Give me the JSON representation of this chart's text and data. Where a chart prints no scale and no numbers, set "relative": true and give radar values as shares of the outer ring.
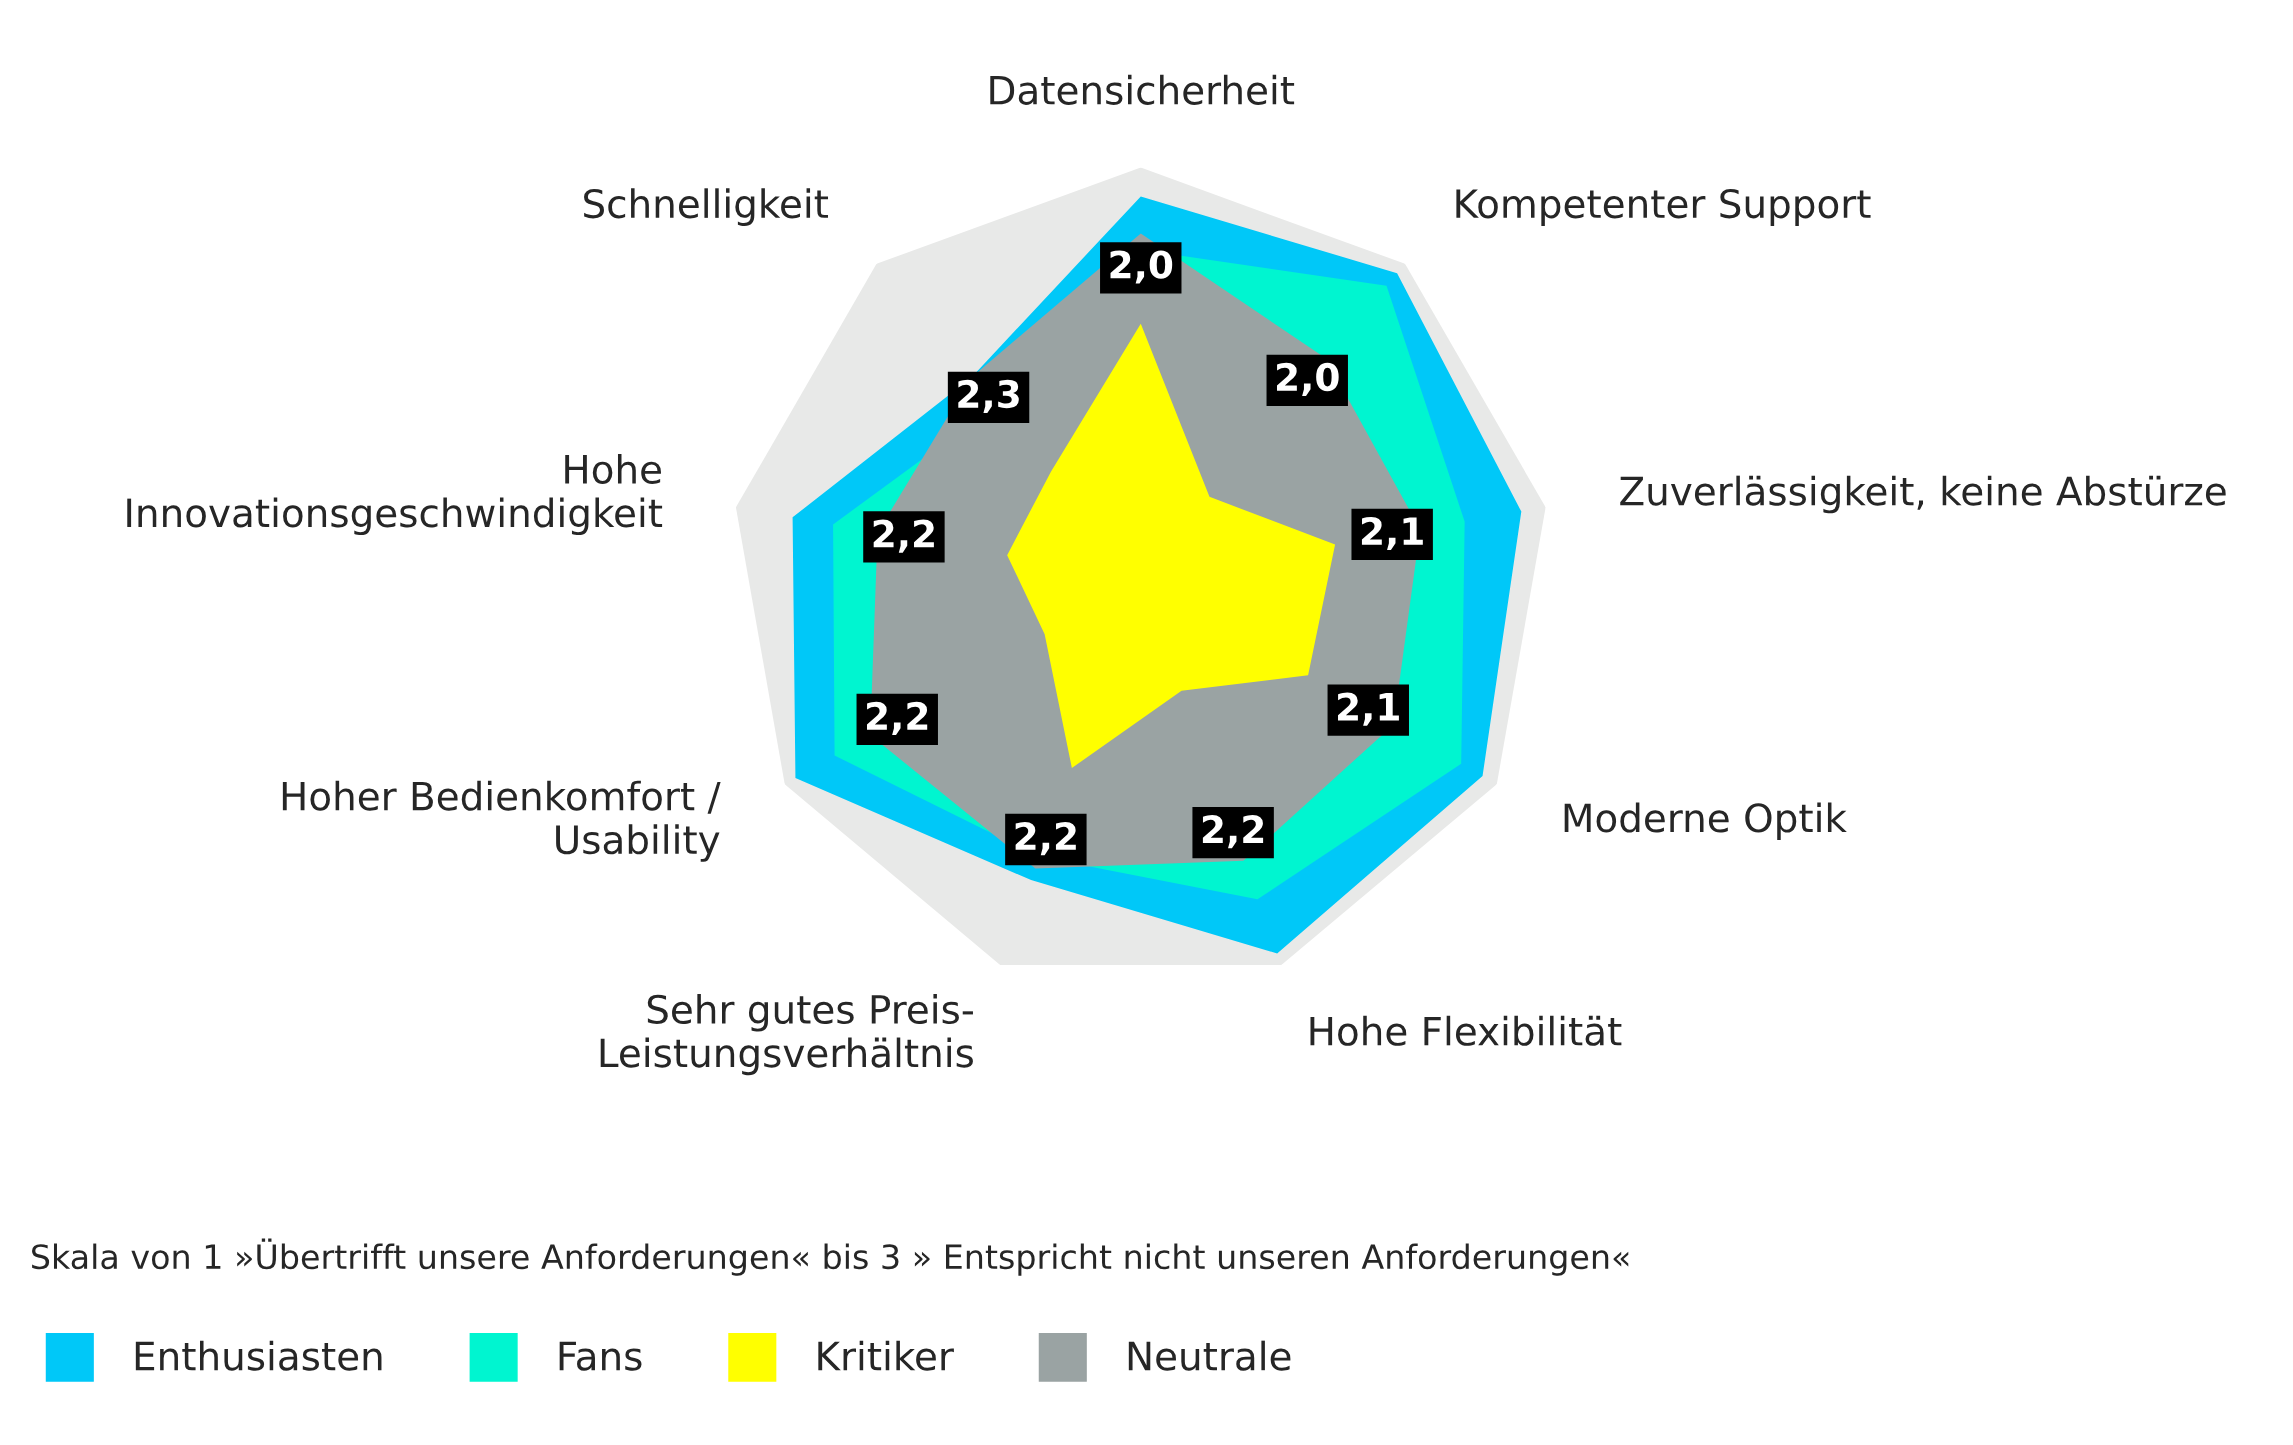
{
  "chart_data": {
    "type": "radar",
    "relative": true,
    "categories": [
      "Datensicherheit",
      "Kompetenter Support",
      "Zuverlässigkeit, keine Abstürze",
      "Moderne Optik",
      "Hohe Flexibilität",
      "Sehr gutes Preis-\nLeistungsverhältnis",
      "Hoher Bedienkomfort /\nUsability",
      "Hohe\nInnovationsgeschwindigkeit",
      "Schnelligkeit"
    ],
    "series": [
      {
        "name": "Enthusiasten",
        "color": "#00c8f8",
        "values": [
          0.93,
          0.97,
          0.94,
          0.96,
          0.97,
          0.78,
          0.97,
          0.86,
          0.64
        ]
      },
      {
        "name": "Fans",
        "color": "#00f5d0",
        "values": [
          0.8,
          0.93,
          0.8,
          0.9,
          0.83,
          0.72,
          0.86,
          0.76,
          0.55
        ]
      },
      {
        "name": "Kritiker",
        "color": "#ffff00",
        "values": [
          0.62,
          0.26,
          0.48,
          0.47,
          0.29,
          0.49,
          0.27,
          0.33,
          0.34
        ]
      },
      {
        "name": "Neutrale",
        "color": "#9aa3a3",
        "values": [
          0.84,
          0.7,
          0.69,
          0.71,
          0.73,
          0.75,
          0.76,
          0.65,
          0.64
        ]
      }
    ],
    "annotations": [
      "Skala von 1 »Übertrifft unsere Anforderungen« bis 3 » Entspricht nicht unseren Anforderungen«",
      "2,0",
      "2,0",
      "2,1",
      "2,1",
      "2,2",
      "2,2",
      "2,2",
      "2,2",
      "2,3"
    ],
    "legend": "bottom left"
  }
}
